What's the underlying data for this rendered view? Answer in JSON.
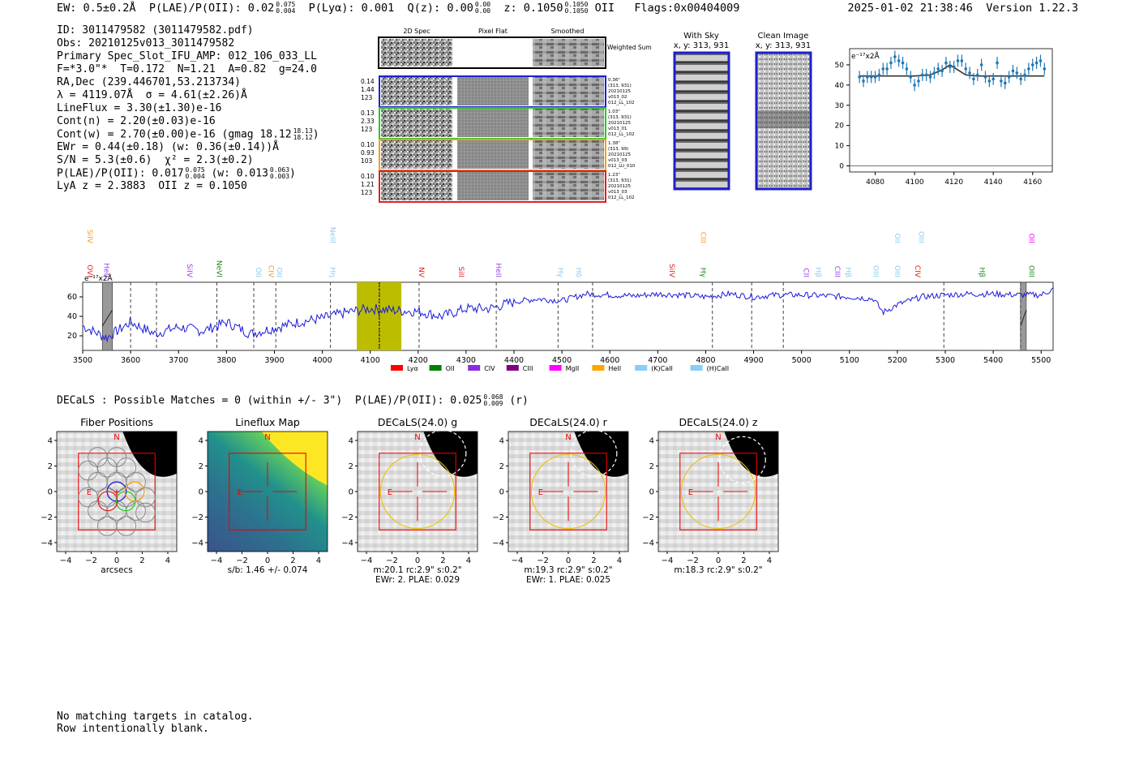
{
  "header": {
    "ew": "EW: 0.5±0.2Å",
    "plae_label": "P(LAE)/P(OII): 0.02",
    "plae_hi": "0.075",
    "plae_lo": "0.004",
    "plya": "P(Lyα): 0.001",
    "qz_label": "Q(z): 0.00",
    "qz_hi": "0.00",
    "qz_lo": "0.00",
    "z_label": "z: 0.1050",
    "z_hi": "0.1050",
    "z_lo": "0.1050",
    "z_line": "OII",
    "flags": "Flags:0x00404009",
    "timestamp": "2025-01-02 21:38:46",
    "version": "Version 1.22.3"
  },
  "info": {
    "id": "ID: 3011479582 (3011479582.pdf)",
    "obs": "Obs: 20210125v013_3011479582",
    "primary": "Primary Spec_Slot_IFU_AMP: 012_106_033_LL",
    "fwhm": "F=*3.0\"*  T=0.172  N=1.21  A=0.82  g=24.0",
    "radec": "RA,Dec (239.446701,53.213734)",
    "lambda": "λ = 4119.07Å  σ = 4.61(±2.26)Å",
    "lineflux": "LineFlux = 3.30(±1.30)e-16",
    "contn": "Cont(n) = 2.20(±0.03)e-16",
    "contw": "Cont(w) = 2.70(±0.00)e-16 (gmag 18.12",
    "contw_hi": "18.13",
    "contw_lo": "18.12",
    "contw_end": ")",
    "ewr": "EWr = 0.44(±0.18) (w: 0.36(±0.14))Å",
    "sn": "S/N = 5.3(±0.6)  χ² = 2.3(±0.2)",
    "plae": "P(LAE)/P(OII): 0.017",
    "plae_hi": "0.075",
    "plae_lo": "0.004",
    "plae_w": "(w: 0.013",
    "plae_w_hi": "0.063",
    "plae_w_lo": "0.003",
    "plae_w_end": ")",
    "lyaz": "LyA z = 2.3883  OII z = 0.1050"
  },
  "stamps": {
    "col_2d": "2D Spec",
    "col_flat": "Pixel Flat",
    "col_smooth": "Smoothed",
    "weighted_sum": "Weighted Sum",
    "fibers": [
      {
        "w1": "0.14",
        "w2": "1.44",
        "w3": "123",
        "d1": "0.36\"",
        "d2": "(313, 931)",
        "d3": "20210125",
        "d4": "v013_02",
        "d5": "012_LL_102",
        "color": "#1f1fcc"
      },
      {
        "w1": "0.13",
        "w2": "2.33",
        "w3": "123",
        "d1": "1.03\"",
        "d2": "(313, 931)",
        "d3": "20210125",
        "d4": "v013_01",
        "d5": "012_LL_102",
        "color": "#22cc22"
      },
      {
        "w1": "0.10",
        "w2": "0.93",
        "w3": "103",
        "d1": "1.38\"",
        "d2": "(313, 99)",
        "d3": "20210125",
        "d4": "v013_03",
        "d5": "012_LU_010",
        "color": "#f0a020"
      },
      {
        "w1": "0.10",
        "w2": "1.21",
        "w3": "123",
        "d1": "1.23\"",
        "d2": "(313, 931)",
        "d3": "20210125",
        "d4": "v013_03",
        "d5": "012_LL_102",
        "color": "#e02020"
      }
    ],
    "with_sky_title": "With Sky",
    "with_sky_xy": "x, y: 313, 931",
    "clean_title": "Clean Image",
    "clean_xy": "x, y: 313, 931"
  },
  "zoom_plot": {
    "unit_label": "e⁻¹⁷x2Å",
    "chart_data": {
      "type": "scatter",
      "xlim": [
        4067,
        4170
      ],
      "ylim": [
        -3,
        58
      ],
      "xticks": [
        4080,
        4100,
        4120,
        4140,
        4160
      ],
      "yticks": [
        0,
        10,
        20,
        30,
        40,
        50
      ],
      "x": [
        4072,
        4074,
        4076,
        4078,
        4080,
        4082,
        4084,
        4086,
        4088,
        4090,
        4092,
        4094,
        4096,
        4098,
        4100,
        4102,
        4104,
        4106,
        4108,
        4110,
        4112,
        4114,
        4116,
        4118,
        4120,
        4122,
        4124,
        4126,
        4128,
        4130,
        4132,
        4134,
        4136,
        4138,
        4140,
        4142,
        4144,
        4146,
        4148,
        4150,
        4152,
        4154,
        4156,
        4158,
        4160,
        4162,
        4164,
        4166
      ],
      "y": [
        44,
        42,
        44,
        44,
        44,
        45,
        48,
        48,
        51,
        54,
        52,
        51,
        48,
        44,
        40,
        42,
        45,
        45,
        44,
        46,
        48,
        47,
        51,
        49,
        49,
        52,
        52,
        48,
        46,
        43,
        45,
        50,
        44,
        42,
        43,
        51,
        42,
        41,
        44,
        47,
        46,
        43,
        45,
        48,
        50,
        51,
        52,
        48
      ],
      "fit_x": [
        4072,
        4100,
        4108,
        4114,
        4118,
        4122,
        4126,
        4132,
        4166
      ],
      "fit_y": [
        44.5,
        44.5,
        45,
        47.5,
        50,
        47.5,
        45,
        44.5,
        44.5
      ]
    }
  },
  "spectrum": {
    "unit_label": "e⁻¹⁷x2Å",
    "chart_data": {
      "type": "line",
      "xlim": [
        3500,
        5525
      ],
      "ylim": [
        5,
        75
      ],
      "xticks": [
        3500,
        3600,
        3700,
        3800,
        3900,
        4000,
        4100,
        4200,
        4300,
        4400,
        4500,
        4600,
        4700,
        4800,
        4900,
        5000,
        5100,
        5200,
        5300,
        5400,
        5500
      ],
      "yticks": [
        20,
        40,
        60
      ],
      "segments": [
        {
          "x": 3500,
          "y": 30
        },
        {
          "x": 3550,
          "y": 18
        },
        {
          "x": 3600,
          "y": 34
        },
        {
          "x": 3650,
          "y": 22
        },
        {
          "x": 3700,
          "y": 29
        },
        {
          "x": 3750,
          "y": 25
        },
        {
          "x": 3800,
          "y": 34
        },
        {
          "x": 3850,
          "y": 22
        },
        {
          "x": 3900,
          "y": 28
        },
        {
          "x": 3950,
          "y": 34
        },
        {
          "x": 4000,
          "y": 38
        },
        {
          "x": 4050,
          "y": 44
        },
        {
          "x": 4100,
          "y": 48
        },
        {
          "x": 4150,
          "y": 46
        },
        {
          "x": 4200,
          "y": 45
        },
        {
          "x": 4250,
          "y": 40
        },
        {
          "x": 4300,
          "y": 48
        },
        {
          "x": 4350,
          "y": 48
        },
        {
          "x": 4400,
          "y": 55
        },
        {
          "x": 4450,
          "y": 58
        },
        {
          "x": 4500,
          "y": 56
        },
        {
          "x": 4550,
          "y": 63
        },
        {
          "x": 4600,
          "y": 62
        },
        {
          "x": 4650,
          "y": 61
        },
        {
          "x": 4700,
          "y": 63
        },
        {
          "x": 4750,
          "y": 62
        },
        {
          "x": 4800,
          "y": 60
        },
        {
          "x": 4850,
          "y": 63
        },
        {
          "x": 4900,
          "y": 60
        },
        {
          "x": 4950,
          "y": 62
        },
        {
          "x": 5000,
          "y": 62
        },
        {
          "x": 5050,
          "y": 61
        },
        {
          "x": 5100,
          "y": 60
        },
        {
          "x": 5150,
          "y": 58
        },
        {
          "x": 5170,
          "y": 44
        },
        {
          "x": 5200,
          "y": 52
        },
        {
          "x": 5250,
          "y": 60
        },
        {
          "x": 5300,
          "y": 62
        },
        {
          "x": 5350,
          "y": 63
        },
        {
          "x": 5400,
          "y": 63
        },
        {
          "x": 5450,
          "y": 62
        },
        {
          "x": 5500,
          "y": 62
        },
        {
          "x": 5525,
          "y": 68
        }
      ],
      "highlight_band": [
        4072,
        4165
      ],
      "line_center": 4119,
      "masked_bands": [
        [
          3541,
          3562
        ],
        [
          5457,
          5469
        ]
      ],
      "dashed_lines": [
        3600,
        3654,
        3780,
        3857,
        3903,
        4017,
        4119,
        4202,
        4363,
        4492,
        4564,
        4814,
        4896,
        4962,
        5297,
        5457
      ],
      "line_labels": [
        {
          "name": "OVI",
          "x": 3510,
          "row": 2,
          "color": "#e02020"
        },
        {
          "name": "SiIV",
          "x": 3510,
          "row": 0,
          "color": "#f0a020"
        },
        {
          "name": "HeII",
          "x": 3545,
          "row": 2,
          "color": "#a040f0"
        },
        {
          "name": "SiIV",
          "x": 3718,
          "row": 2,
          "color": "#a040f0"
        },
        {
          "name": "NeVI",
          "x": 3780,
          "row": 2,
          "color": "#1a8a1a"
        },
        {
          "name": "OII",
          "x": 3862,
          "row": 2,
          "color": "#88ccee"
        },
        {
          "name": "CIV",
          "x": 3888,
          "row": 2,
          "color": "#f0a020"
        },
        {
          "name": "OII",
          "x": 3905,
          "row": 2,
          "color": "#88ccee"
        },
        {
          "name": "NeIII",
          "x": 4017,
          "row": 0,
          "color": "#88ccee"
        },
        {
          "name": "Hη",
          "x": 4017,
          "row": 2,
          "color": "#88ccee"
        },
        {
          "name": "NV",
          "x": 4202,
          "row": 2,
          "color": "#e02020"
        },
        {
          "name": "SiII",
          "x": 4285,
          "row": 2,
          "color": "#e02020"
        },
        {
          "name": "HeII",
          "x": 4363,
          "row": 2,
          "color": "#a040f0"
        },
        {
          "name": "Hγ",
          "x": 4492,
          "row": 2,
          "color": "#88ccee"
        },
        {
          "name": "Hδ",
          "x": 4530,
          "row": 2,
          "color": "#88ccee"
        },
        {
          "name": "SiIV",
          "x": 4725,
          "row": 2,
          "color": "#e02020"
        },
        {
          "name": "Hγ",
          "x": 4790,
          "row": 2,
          "color": "#1a8a1a"
        },
        {
          "name": "CIII",
          "x": 4790,
          "row": 0,
          "color": "#f0a020"
        },
        {
          "name": "CII",
          "x": 5005,
          "row": 2,
          "color": "#a040f0"
        },
        {
          "name": "Hβ",
          "x": 5030,
          "row": 2,
          "color": "#88ccee"
        },
        {
          "name": "CIII",
          "x": 5070,
          "row": 2,
          "color": "#a040f0"
        },
        {
          "name": "Hβ",
          "x": 5093,
          "row": 2,
          "color": "#88ccee"
        },
        {
          "name": "OIII",
          "x": 5150,
          "row": 2,
          "color": "#88ccee"
        },
        {
          "name": "OIII",
          "x": 5195,
          "row": 2,
          "color": "#88ccee"
        },
        {
          "name": "OII",
          "x": 5195,
          "row": 0,
          "color": "#88ccee"
        },
        {
          "name": "OIII",
          "x": 5245,
          "row": 0,
          "color": "#88ccee"
        },
        {
          "name": "CIV",
          "x": 5237,
          "row": 2,
          "color": "#e02020"
        },
        {
          "name": "Hβ",
          "x": 5372,
          "row": 2,
          "color": "#1a8a1a"
        },
        {
          "name": "OIII",
          "x": 5475,
          "row": 2,
          "color": "#1a8a1a"
        },
        {
          "name": "OII",
          "x": 5475,
          "row": 0,
          "color": "#ff00ff"
        }
      ],
      "legend": [
        {
          "name": "Lyα",
          "color": "#ff0000"
        },
        {
          "name": "OII",
          "color": "#008000"
        },
        {
          "name": "CIV",
          "color": "#8a2be2"
        },
        {
          "name": "CIII",
          "color": "#800080"
        },
        {
          "name": "MgII",
          "color": "#ff00ff"
        },
        {
          "name": "HeII",
          "color": "#ffa500"
        },
        {
          "name": "(K)CaII",
          "color": "#87cefa"
        },
        {
          "name": "(H)CaII",
          "color": "#87cefa"
        }
      ]
    }
  },
  "decals": {
    "line": "DECaLS : Possible Matches = 0 (within +/- 3\")  P(LAE)/P(OII): 0.025",
    "plae_hi": "0.068",
    "plae_lo": "0.009",
    "band": "(r)"
  },
  "cutouts": {
    "ticks": [
      "4",
      "2",
      "0",
      "−2",
      "−4"
    ],
    "xticks": [
      "−4",
      "−2",
      "0",
      "2",
      "4"
    ],
    "north": "N",
    "east": "E",
    "panels": [
      {
        "title": "Fiber Positions",
        "cap1": "arcsecs",
        "cap2": ""
      },
      {
        "title": "Lineflux Map",
        "cap1": "s/b: 1.46 +/- 0.074",
        "cap2": ""
      },
      {
        "title": "DECaLS(24.0) g",
        "cap1": "m:20.1 rc:2.9\"  s:0.2\"",
        "cap2": "EWr: 2. PLAE: 0.029"
      },
      {
        "title": "DECaLS(24.0) r",
        "cap1": "m:19.3 rc:2.9\"  s:0.2\"",
        "cap2": "EWr: 1. PLAE: 0.025"
      },
      {
        "title": "DECaLS(24.0) z",
        "cap1": "m:18.3 rc:2.9\"  s:0.2\"",
        "cap2": ""
      }
    ]
  },
  "footer": {
    "line1": "No matching targets in catalog.",
    "line2": "Row intentionally blank."
  }
}
